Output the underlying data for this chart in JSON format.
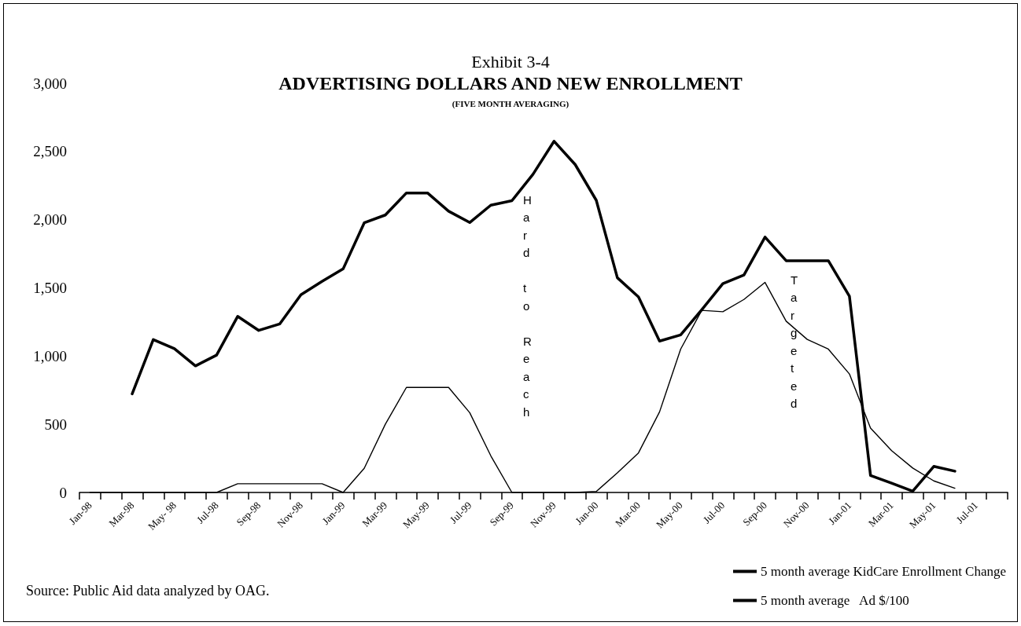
{
  "chart_data": {
    "type": "line",
    "title": "ADVERTISING DOLLARS AND NEW ENROLLMENT",
    "subtitle": "(FIVE MONTH AVERAGING)",
    "annotations": [
      "Exhibit 3-4",
      "Hard to Reach",
      "Targeted",
      "Source: Public Aid data analyzed by OAG."
    ],
    "categories": [
      "Jan-98",
      null,
      "Mar-98",
      null,
      "May- 98",
      null,
      "Jul-98",
      null,
      "Sep-98",
      null,
      "Nov-98",
      null,
      "Jan-99",
      null,
      "Mar-99",
      null,
      "May-99",
      null,
      "Jul-99",
      null,
      "Sep-99",
      null,
      "Nov-99",
      null,
      "Jan-00",
      null,
      "Mar-00",
      null,
      "May-00",
      null,
      "Jul-00",
      null,
      "Sep-00",
      null,
      "Nov-00",
      null,
      "Jan-01",
      null,
      "Mar-01",
      null,
      "May-01",
      null,
      "Jul-01",
      null
    ],
    "series": [
      {
        "name": "5 month average KidCare Enrollment Change",
        "color": "#000000",
        "values": [
          null,
          null,
          723,
          1121,
          1054,
          928,
          1007,
          1291,
          1188,
          1236,
          1450,
          1547,
          1639,
          1977,
          2034,
          2196,
          2196,
          2062,
          1979,
          2106,
          2139,
          2333,
          2575,
          2404,
          2142,
          1574,
          1434,
          1110,
          1155,
          1340,
          1531,
          1594,
          1872,
          1699,
          1699,
          1699,
          1439,
          125,
          68,
          10,
          191,
          156,
          null,
          null
        ]
      },
      {
        "name": "5 month average   Ad $/100",
        "color": "#000000",
        "values": [
          0,
          0,
          0,
          0,
          0,
          0,
          0,
          64,
          64,
          64,
          64,
          64,
          0,
          177,
          500,
          770,
          770,
          770,
          585,
          269,
          0,
          0,
          0,
          0,
          7,
          144,
          290,
          591,
          1051,
          1335,
          1325,
          1415,
          1540,
          1256,
          1122,
          1051,
          869,
          472,
          307,
          179,
          85,
          31,
          null,
          null
        ]
      }
    ],
    "ylim": [
      0,
      3000
    ],
    "yticks": [
      0,
      500,
      {
        "value": 1000,
        "label": "1,000"
      },
      {
        "value": 1500,
        "label": "1,500"
      },
      {
        "value": 2000,
        "label": "2,000"
      },
      {
        "value": 2500,
        "label": "2,500"
      },
      {
        "value": 3000,
        "label": "3,000"
      }
    ],
    "grid": false,
    "legend": "bottom right",
    "marker": "none",
    "line_style": "solid"
  }
}
